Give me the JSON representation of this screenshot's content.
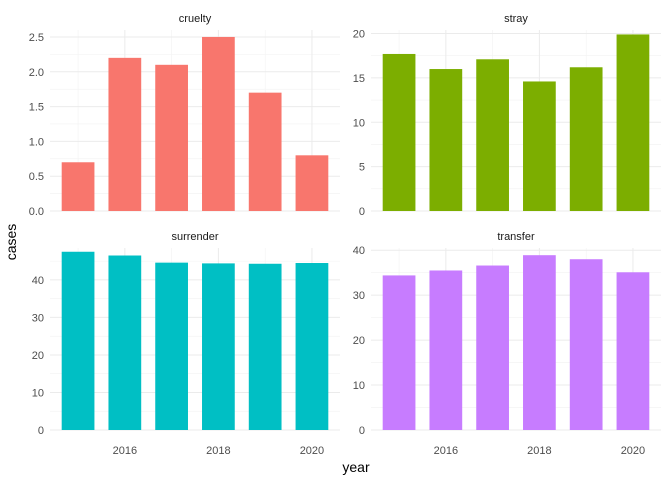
{
  "chart_data": {
    "type": "bar",
    "layout": "facet_wrap 2x2, free y scales",
    "xlabel": "year",
    "ylabel": "cases",
    "x_ticks": [
      2016,
      2018,
      2020
    ],
    "x": [
      2015,
      2016,
      2017,
      2018,
      2019,
      2020
    ],
    "xlim": [
      2014.4,
      2020.6
    ],
    "grid": true,
    "facets": [
      {
        "name": "cruelty",
        "color": "#F8766D",
        "ylim": [
          0,
          2.6
        ],
        "y_ticks": [
          "0.0",
          "0.5",
          "1.0",
          "1.5",
          "2.0",
          "2.5"
        ],
        "y_tick_values": [
          0,
          0.5,
          1,
          1.5,
          2,
          2.5
        ],
        "values": [
          0.7,
          2.2,
          2.1,
          2.5,
          1.7,
          0.8
        ]
      },
      {
        "name": "stray",
        "color": "#7CAE00",
        "ylim": [
          0,
          20.4
        ],
        "y_ticks": [
          "0",
          "5",
          "10",
          "15",
          "20"
        ],
        "y_tick_values": [
          0,
          5,
          10,
          15,
          20
        ],
        "values": [
          17.7,
          16.0,
          17.1,
          14.6,
          16.2,
          19.9
        ]
      },
      {
        "name": "surrender",
        "color": "#00BFC4",
        "ylim": [
          0,
          48.5
        ],
        "y_ticks": [
          "0",
          "10",
          "20",
          "30",
          "40"
        ],
        "y_tick_values": [
          0,
          10,
          20,
          30,
          40
        ],
        "values": [
          47.5,
          46.5,
          44.6,
          44.4,
          44.3,
          44.5
        ]
      },
      {
        "name": "transfer",
        "color": "#C77CFF",
        "ylim": [
          0,
          40.5
        ],
        "y_ticks": [
          "0",
          "10",
          "20",
          "30",
          "40"
        ],
        "y_tick_values": [
          0,
          10,
          20,
          30,
          40
        ],
        "values": [
          34.4,
          35.5,
          36.6,
          38.9,
          38.0,
          35.1
        ]
      }
    ]
  }
}
